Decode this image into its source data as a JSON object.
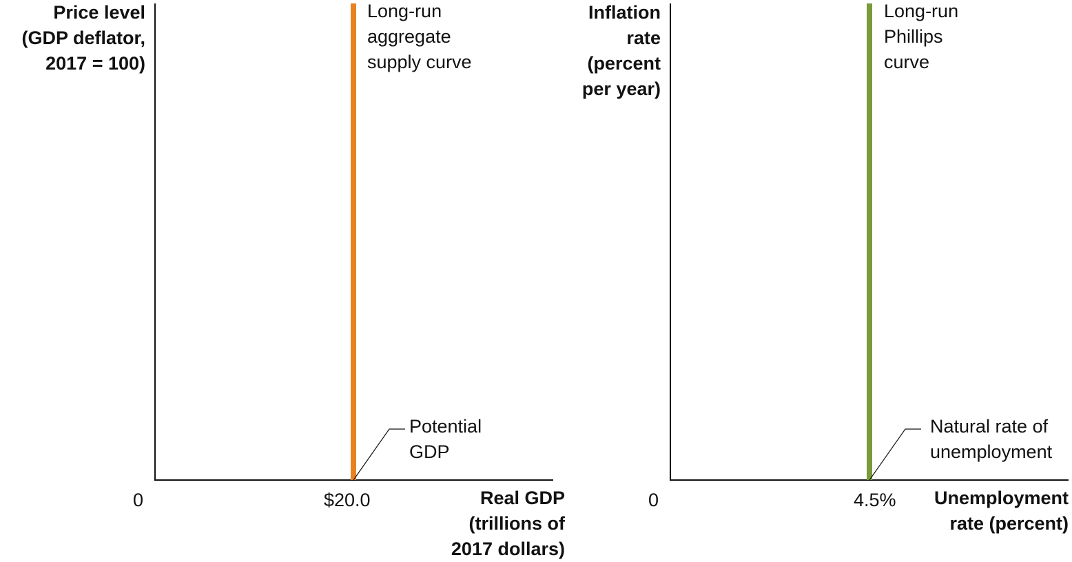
{
  "charts": [
    {
      "ylabel": "Price level\n(GDP deflator,\n2017 = 100)",
      "xlabel": "Real GDP\n(trillions of\n2017 dollars)",
      "origin_label": "0",
      "tick_label": "$20.0",
      "curve_label": "Long-run\naggregate\nsupply curve",
      "callout_label": "Potential\nGDP",
      "curve_color": "#e8821e"
    },
    {
      "ylabel": "Inflation\nrate\n(percent\nper year)",
      "xlabel": "Unemployment\nrate (percent)",
      "origin_label": "0",
      "tick_label": "4.5%",
      "curve_label": "Long-run\nPhillips\ncurve",
      "callout_label": "Natural rate of\nunemployment",
      "curve_color": "#7a9a3c"
    }
  ],
  "chart_data": [
    {
      "type": "line",
      "title": "",
      "ylabel": "Price level (GDP deflator, 2017 = 100)",
      "xlabel": "Real GDP (trillions of 2017 dollars)",
      "x_ticks": [
        "0",
        "$20.0"
      ],
      "series": [
        {
          "name": "Long-run aggregate supply curve",
          "x": [
            20.0,
            20.0
          ],
          "y": [
            0,
            1
          ]
        }
      ],
      "annotations": [
        {
          "text": "Potential GDP",
          "x": 20.0,
          "y": 0
        }
      ],
      "grid": false,
      "legend": "none"
    },
    {
      "type": "line",
      "title": "",
      "ylabel": "Inflation rate (percent per year)",
      "xlabel": "Unemployment rate (percent)",
      "x_ticks": [
        "0",
        "4.5%"
      ],
      "series": [
        {
          "name": "Long-run Phillips curve",
          "x": [
            4.5,
            4.5
          ],
          "y": [
            0,
            1
          ]
        }
      ],
      "annotations": [
        {
          "text": "Natural rate of unemployment",
          "x": 4.5,
          "y": 0
        }
      ],
      "grid": false,
      "legend": "none"
    }
  ]
}
